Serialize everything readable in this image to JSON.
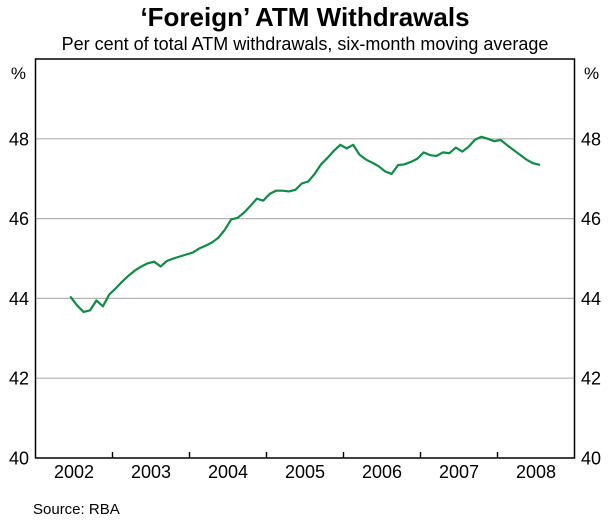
{
  "source": "Source: RBA",
  "chart_data": {
    "type": "line",
    "title": "‘Foreign’ ATM Withdrawals",
    "subtitle": "Per cent of total ATM withdrawals, six-month moving average",
    "unit_left": "%",
    "unit_right": "%",
    "ylim": [
      40,
      50
    ],
    "yticks": [
      40,
      42,
      44,
      46,
      48
    ],
    "gridlines": [
      42,
      44,
      46,
      48
    ],
    "grid_color": "#b3b3b3",
    "axis_color": "#000000",
    "legend": "none",
    "x_axis": {
      "years": [
        "2002",
        "2003",
        "2004",
        "2005",
        "2006",
        "2007",
        "2008"
      ],
      "tick_style": "inward-at-year-boundaries"
    },
    "series": [
      {
        "name": "Foreign ATM withdrawals (% of total, 6-month moving average)",
        "color": "#0f8b45",
        "start": "2002-06",
        "frequency": "monthly",
        "values": [
          44.03,
          43.82,
          43.66,
          43.7,
          43.95,
          43.8,
          44.1,
          44.25,
          44.42,
          44.57,
          44.7,
          44.8,
          44.88,
          44.92,
          44.8,
          44.94,
          45.0,
          45.05,
          45.1,
          45.15,
          45.25,
          45.32,
          45.4,
          45.52,
          45.72,
          45.98,
          46.02,
          46.15,
          46.32,
          46.5,
          46.45,
          46.62,
          46.7,
          46.7,
          46.68,
          46.72,
          46.88,
          46.93,
          47.12,
          47.36,
          47.52,
          47.7,
          47.85,
          47.76,
          47.85,
          47.6,
          47.48,
          47.4,
          47.31,
          47.18,
          47.12,
          47.34,
          47.36,
          47.42,
          47.5,
          47.66,
          47.59,
          47.57,
          47.66,
          47.64,
          47.78,
          47.68,
          47.8,
          47.98,
          48.05,
          48.0,
          47.94,
          47.97,
          47.84,
          47.72,
          47.6,
          47.48,
          47.39,
          47.35
        ]
      }
    ]
  }
}
